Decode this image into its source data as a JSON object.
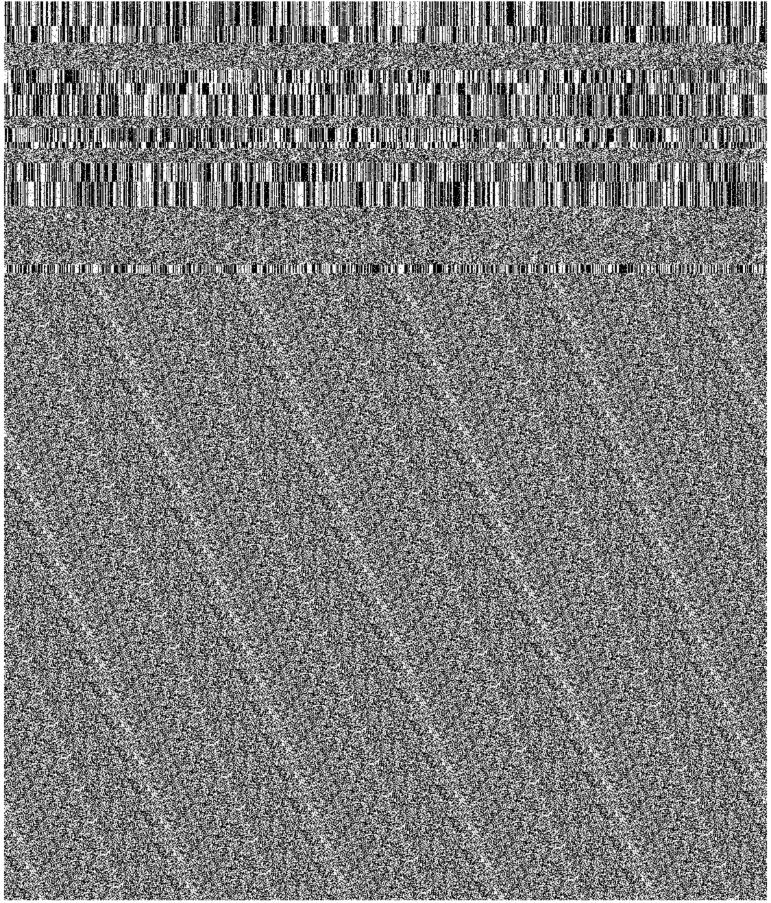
{
  "image": {
    "description_kind": "corrupted-render",
    "colors": {
      "background": "#ffffff",
      "ink": "#000000",
      "noise_mid": "#7f7f7f"
    },
    "regions": [
      {
        "name": "top-banded-stripes",
        "style": "vertical-barcode-bands"
      },
      {
        "name": "lower-static-noise",
        "style": "random-pixel-noise"
      }
    ]
  }
}
